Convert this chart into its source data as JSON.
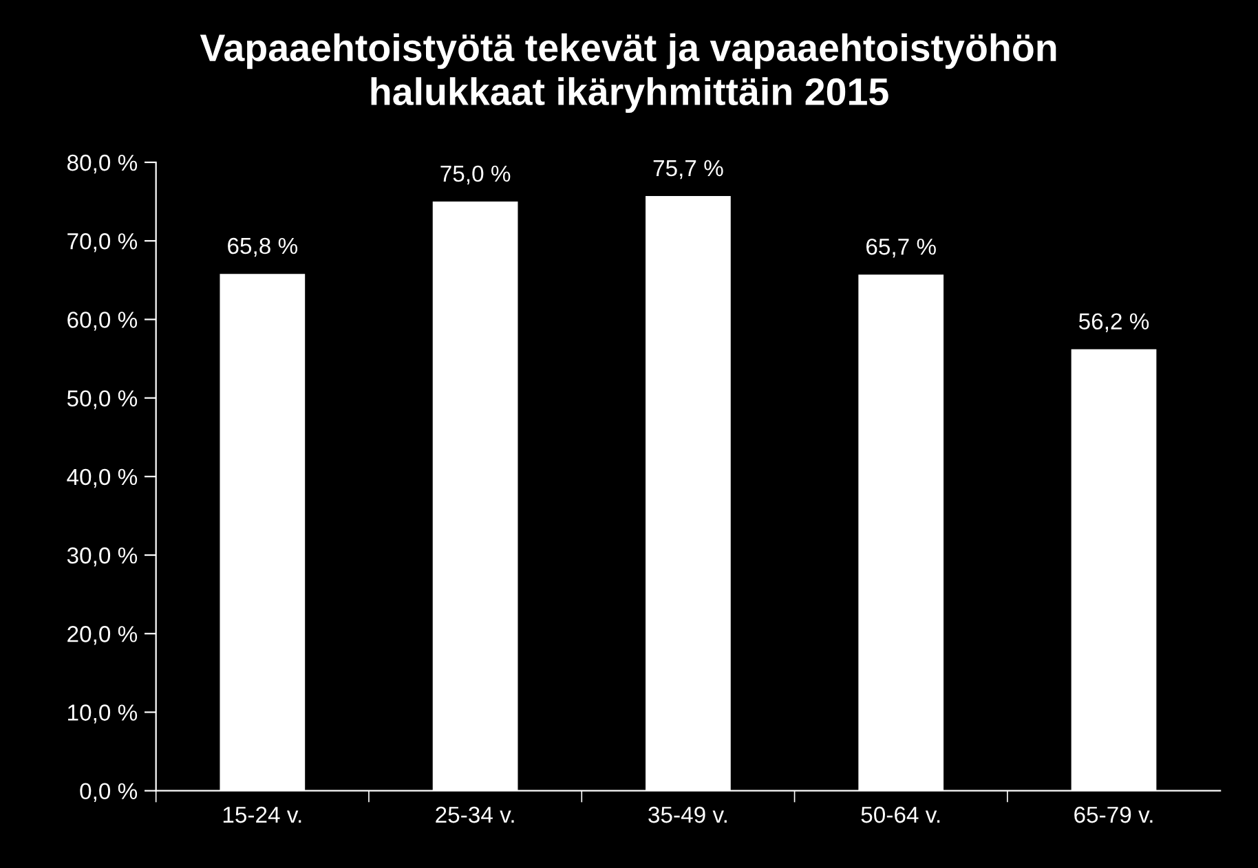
{
  "chart_data": {
    "type": "bar",
    "title": "Vapaaehtoistyötä tekevät ja vapaaehtoistyöhön\nhalukkaat ikäryhmittäin 2015",
    "categories": [
      "15-24 v.",
      "25-34 v.",
      "35-49 v.",
      "50-64 v.",
      "65-79 v."
    ],
    "values": [
      65.8,
      75.0,
      75.7,
      65.7,
      56.2
    ],
    "value_labels": [
      "65,8 %",
      "75,0 %",
      "75,7 %",
      "65,7 %",
      "56,2 %"
    ],
    "color": "#ffffff",
    "ylim": [
      0,
      80
    ],
    "yticks": [
      {
        "value": 0,
        "label": "0,0 %"
      },
      {
        "value": 10,
        "label": "10,0 %"
      },
      {
        "value": 20,
        "label": "20,0 %"
      },
      {
        "value": 30,
        "label": "30,0 %"
      },
      {
        "value": 40,
        "label": "40,0 %"
      },
      {
        "value": 50,
        "label": "50,0 %"
      },
      {
        "value": 60,
        "label": "60,0 %"
      },
      {
        "value": 70,
        "label": "70,0 %"
      },
      {
        "value": 80,
        "label": "80,0 %"
      }
    ],
    "grid": false,
    "legend": false
  }
}
